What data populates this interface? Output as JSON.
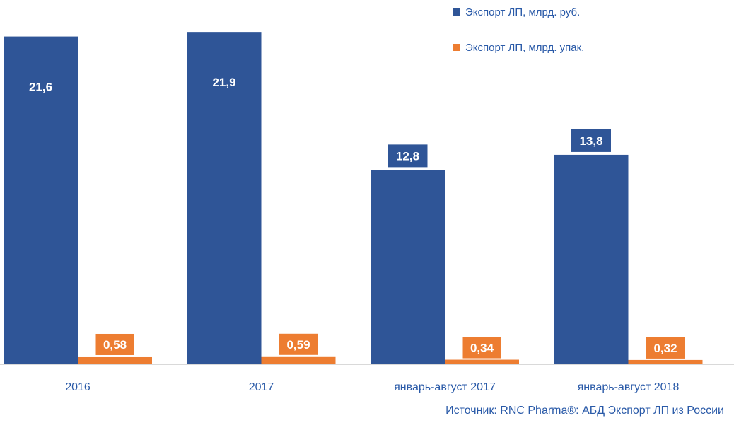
{
  "chart_data": {
    "type": "bar",
    "categories": [
      "2016",
      "2017",
      "январь-август 2017",
      "январь-август 2018"
    ],
    "series": [
      {
        "name": "Экспорт ЛП, млрд. руб.",
        "values": [
          21.6,
          21.9,
          12.8,
          13.8
        ],
        "labels": [
          "21,6",
          "21,9",
          "12,8",
          "13,8"
        ],
        "color": "#2f5597"
      },
      {
        "name": "Экспорт ЛП, млрд. упак.",
        "values": [
          0.58,
          0.59,
          0.34,
          0.32
        ],
        "labels": [
          "0,58",
          "0,59",
          "0,34",
          "0,32"
        ],
        "color": "#ed7d31"
      }
    ],
    "ylim": [
      0,
      22
    ],
    "grid": false,
    "legend_position": "top-right",
    "title": "",
    "xlabel": "",
    "ylabel": ""
  },
  "source": "Источник: RNC Pharma®: АБД Экспорт ЛП из России",
  "colors": {
    "text": "#2a5aa8",
    "axis": "#d9d9d9"
  }
}
